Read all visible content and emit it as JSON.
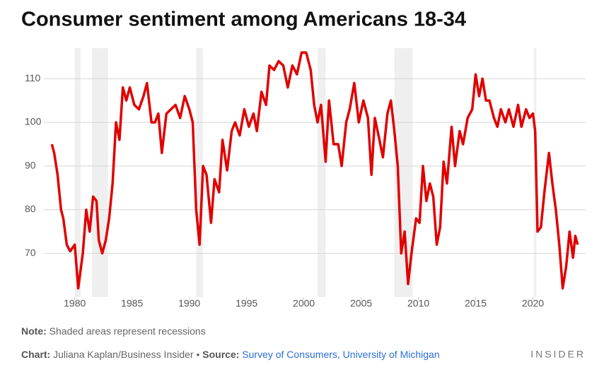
{
  "chart_data": {
    "type": "line",
    "title": "Consumer sentiment among Americans 18-34",
    "note_label": "Note:",
    "note": "Shaded areas represent recessions",
    "credit_label": "Chart:",
    "credit": "Juliana Kaplan/Business Insider •",
    "source_label": "Source:",
    "source": "Survey of Consumers, University of Michigan",
    "brand": "INSIDER",
    "recessions": [
      [
        1980.0,
        1980.5
      ],
      [
        1981.5,
        1982.9
      ],
      [
        1990.6,
        1991.2
      ],
      [
        2001.2,
        2001.9
      ],
      [
        2007.9,
        2009.5
      ],
      [
        2020.1,
        2020.3
      ]
    ],
    "recession_color": "#efefef",
    "xlim": [
      1977.3,
      2024.6
    ],
    "xticks": [
      1980,
      1985,
      1990,
      1995,
      2000,
      2005,
      2010,
      2015,
      2020
    ],
    "ylim": [
      60,
      117
    ],
    "yticks": [
      70,
      80,
      90,
      100,
      110
    ],
    "grid": true,
    "series": [
      {
        "color": "#e00000",
        "x": [
          1978.0,
          1978.2,
          1978.5,
          1978.8,
          1979.0,
          1979.3,
          1979.6,
          1980.0,
          1980.3,
          1980.7,
          1981.0,
          1981.3,
          1981.6,
          1981.9,
          1982.1,
          1982.4,
          1982.7,
          1983.0,
          1983.3,
          1983.6,
          1983.9,
          1984.2,
          1984.5,
          1984.8,
          1985.2,
          1985.6,
          1986.0,
          1986.3,
          1986.7,
          1987.0,
          1987.3,
          1987.6,
          1988.0,
          1988.4,
          1988.8,
          1989.2,
          1989.6,
          1990.0,
          1990.3,
          1990.6,
          1990.9,
          1991.2,
          1991.5,
          1991.9,
          1992.2,
          1992.6,
          1992.9,
          1993.3,
          1993.7,
          1994.0,
          1994.4,
          1994.8,
          1995.2,
          1995.6,
          1995.9,
          1996.3,
          1996.7,
          1997.0,
          1997.4,
          1997.8,
          1998.2,
          1998.6,
          1999.0,
          1999.4,
          1999.8,
          2000.2,
          2000.6,
          2000.9,
          2001.2,
          2001.5,
          2001.9,
          2002.2,
          2002.6,
          2003.0,
          2003.3,
          2003.7,
          2004.0,
          2004.4,
          2004.8,
          2005.2,
          2005.6,
          2005.9,
          2006.2,
          2006.6,
          2006.9,
          2007.3,
          2007.6,
          2007.9,
          2008.2,
          2008.5,
          2008.8,
          2009.1,
          2009.4,
          2009.8,
          2010.1,
          2010.4,
          2010.7,
          2011.0,
          2011.3,
          2011.6,
          2011.9,
          2012.2,
          2012.5,
          2012.9,
          2013.2,
          2013.6,
          2013.9,
          2014.3,
          2014.7,
          2015.0,
          2015.3,
          2015.6,
          2015.9,
          2016.2,
          2016.6,
          2016.9,
          2017.2,
          2017.6,
          2017.9,
          2018.3,
          2018.7,
          2019.0,
          2019.4,
          2019.7,
          2020.0,
          2020.2,
          2020.4,
          2020.7,
          2021.0,
          2021.4,
          2021.7,
          2022.0,
          2022.3,
          2022.6,
          2022.9,
          2023.2,
          2023.5,
          2023.7,
          2023.9
        ],
        "values": [
          95,
          93,
          88,
          80,
          78,
          72,
          70.5,
          72,
          62,
          70,
          80,
          75,
          83,
          82,
          73,
          70,
          73,
          78,
          86,
          100,
          96,
          108,
          105,
          108,
          104,
          103,
          106,
          109,
          100,
          100,
          102,
          93,
          102,
          103,
          104,
          101,
          106,
          103,
          100,
          80,
          72,
          90,
          88,
          77,
          87,
          84,
          96,
          89,
          98,
          100,
          97,
          103,
          99,
          102,
          98,
          107,
          104,
          113,
          112,
          114,
          113,
          108,
          113,
          111,
          116,
          116,
          112,
          104,
          100,
          104,
          91,
          105,
          95,
          95,
          90,
          100,
          103,
          109,
          100,
          105,
          101,
          88,
          101,
          96,
          92,
          102,
          105,
          98,
          90,
          70,
          75,
          63,
          70,
          78,
          77,
          90,
          82,
          86,
          83,
          72,
          76,
          91,
          86,
          99,
          90,
          98,
          95,
          101,
          103,
          111,
          106,
          110,
          105,
          105,
          101,
          99,
          103,
          100,
          103,
          99,
          104,
          99,
          103,
          101,
          102,
          98,
          75,
          76,
          84,
          93,
          86,
          80,
          72,
          62,
          67,
          75,
          69,
          74,
          72
        ]
      }
    ]
  }
}
